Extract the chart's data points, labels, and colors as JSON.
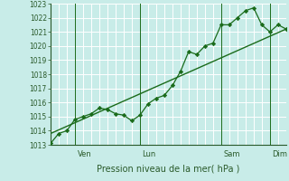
{
  "xlabel": "Pression niveau de la mer( hPa )",
  "bg_color": "#c8ece8",
  "grid_color": "#ffffff",
  "line_color": "#1a6b1a",
  "marker_color": "#1a6b1a",
  "ylim": [
    1013,
    1023
  ],
  "yticks": [
    1013,
    1014,
    1015,
    1016,
    1017,
    1018,
    1019,
    1020,
    1021,
    1022,
    1023
  ],
  "day_labels": [
    "Ven",
    "Lun",
    "Sam",
    "Dim"
  ],
  "vline_x": [
    0.115,
    0.355,
    0.73,
    0.94
  ],
  "data_x": [
    0,
    0.5,
    1,
    1.5,
    2,
    2.5,
    3,
    3.5,
    4,
    4.5,
    5,
    5.5,
    6,
    6.5,
    7,
    7.5,
    8,
    8.5,
    9,
    9.5,
    10,
    10.5,
    11,
    11.5,
    12,
    12.5,
    13,
    13.5,
    14,
    14.5
  ],
  "data_y": [
    1013.1,
    1013.8,
    1014.0,
    1014.8,
    1015.0,
    1015.2,
    1015.6,
    1015.5,
    1015.2,
    1015.1,
    1014.7,
    1015.1,
    1015.9,
    1016.3,
    1016.5,
    1017.2,
    1018.2,
    1019.6,
    1019.4,
    1020.0,
    1020.2,
    1021.5,
    1021.5,
    1022.0,
    1022.5,
    1022.7,
    1021.5,
    1021.0,
    1021.5,
    1021.2
  ],
  "trend_x": [
    0,
    14.5
  ],
  "trend_y": [
    1013.8,
    1021.2
  ],
  "xlim": [
    0,
    14.5
  ],
  "vline_xdata": [
    1.5,
    5.5,
    10.5,
    13.5
  ]
}
